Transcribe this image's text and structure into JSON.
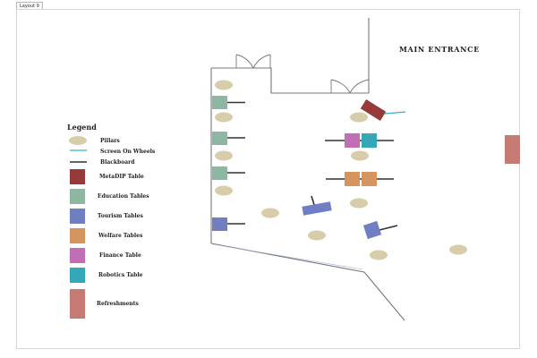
{
  "tab_label": "Layout 9",
  "title": "MAIN ENTRANCE",
  "legend": {
    "heading": "Legend",
    "items": [
      {
        "id": "pillars",
        "label": "Pillars"
      },
      {
        "id": "screen",
        "label": "Screen On Wheels"
      },
      {
        "id": "blackboard",
        "label": "Blackboard"
      },
      {
        "id": "metadip",
        "label": "MetaDIP Table"
      },
      {
        "id": "education",
        "label": "Education Tables"
      },
      {
        "id": "tourism",
        "label": "Tourism Tables"
      },
      {
        "id": "welfare",
        "label": "Welfare Tables"
      },
      {
        "id": "finance",
        "label": "Finance Table"
      },
      {
        "id": "robotics",
        "label": "Robotics Table"
      },
      {
        "id": "refreshments",
        "label": "Refreshments"
      }
    ]
  },
  "colors": {
    "pillar": "#d8cdab",
    "screen": "#34b0c2",
    "blackboard": "#333333",
    "metadip": "#973b3a",
    "education": "#8db6a3",
    "tourism": "#6f7fc2",
    "welfare": "#d4955f",
    "finance": "#c26eb7",
    "robotics": "#35a8b8",
    "refreshments": "#c57b74"
  }
}
